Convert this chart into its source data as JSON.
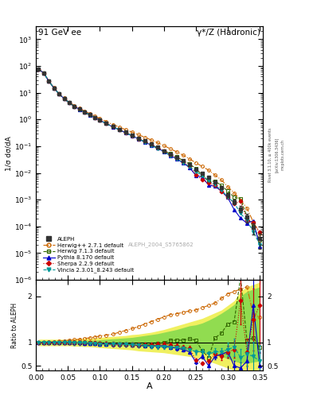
{
  "title_left": "91 GeV ee",
  "title_right": "γ*/Z (Hadronic)",
  "xlabel": "A",
  "ylabel_main": "1/σ dσ/dA",
  "ylabel_ratio": "Ratio to ALEPH",
  "watermark": "ALEPH_2004_S5765862",
  "rivet_label": "Rivet 3.1.10, ≥ 400k events",
  "arxiv_label": "[arXiv:1306.3436]",
  "mcplots_label": "mcplots.cern.ch",
  "xlim": [
    0.0,
    0.355
  ],
  "ylim_main": [
    1e-06,
    3000.0
  ],
  "ylim_ratio": [
    0.4,
    2.35
  ],
  "color_aleph": "#333333",
  "color_herwig": "#cc6600",
  "color_herwig7": "#336600",
  "color_pythia": "#0000cc",
  "color_sherpa": "#cc0000",
  "color_vincia": "#009999",
  "aleph_x": [
    0.004,
    0.012,
    0.02,
    0.028,
    0.036,
    0.044,
    0.052,
    0.06,
    0.068,
    0.076,
    0.084,
    0.092,
    0.1,
    0.11,
    0.12,
    0.13,
    0.14,
    0.15,
    0.16,
    0.17,
    0.18,
    0.19,
    0.2,
    0.21,
    0.22,
    0.23,
    0.24,
    0.25,
    0.26,
    0.27,
    0.28,
    0.29,
    0.3,
    0.31,
    0.32,
    0.33,
    0.34,
    0.35
  ],
  "aleph_y": [
    75.0,
    55.0,
    27.0,
    15.0,
    9.0,
    6.0,
    4.2,
    3.1,
    2.4,
    1.9,
    1.5,
    1.2,
    0.95,
    0.72,
    0.55,
    0.43,
    0.33,
    0.26,
    0.2,
    0.155,
    0.118,
    0.09,
    0.068,
    0.05,
    0.038,
    0.028,
    0.02,
    0.014,
    0.01,
    0.007,
    0.0045,
    0.0028,
    0.0015,
    0.00085,
    0.00045,
    0.00022,
    9e-05,
    3.5e-05
  ],
  "aleph_yerr": [
    3.0,
    2.0,
    1.0,
    0.6,
    0.35,
    0.25,
    0.18,
    0.13,
    0.1,
    0.08,
    0.06,
    0.05,
    0.04,
    0.03,
    0.025,
    0.019,
    0.015,
    0.012,
    0.009,
    0.007,
    0.006,
    0.0045,
    0.0034,
    0.0026,
    0.002,
    0.0016,
    0.0012,
    0.0009,
    0.0007,
    0.0005,
    0.0004,
    0.0003,
    0.00025,
    0.00018,
    0.00012,
    8e-05,
    4e-05,
    2e-05
  ],
  "herwig_ratio": [
    1.0,
    1.0,
    1.01,
    1.02,
    1.03,
    1.04,
    1.05,
    1.06,
    1.07,
    1.09,
    1.1,
    1.12,
    1.14,
    1.16,
    1.18,
    1.22,
    1.26,
    1.3,
    1.34,
    1.4,
    1.45,
    1.5,
    1.55,
    1.6,
    1.62,
    1.65,
    1.68,
    1.7,
    1.75,
    1.8,
    1.85,
    1.95,
    2.05,
    2.1,
    2.15,
    2.2,
    1.6,
    1.55
  ],
  "herwig7_ratio": [
    1.0,
    1.0,
    1.0,
    1.0,
    1.0,
    1.0,
    1.0,
    0.99,
    0.99,
    0.99,
    0.99,
    0.98,
    0.98,
    0.97,
    0.97,
    0.97,
    0.97,
    0.97,
    0.95,
    0.95,
    0.95,
    0.98,
    1.0,
    1.05,
    1.05,
    1.05,
    1.08,
    1.05,
    0.82,
    0.68,
    1.1,
    1.2,
    1.4,
    1.45,
    2.4,
    1.05,
    1.1,
    0.9
  ],
  "pythia_ratio": [
    1.0,
    1.0,
    1.0,
    1.0,
    1.0,
    1.0,
    1.0,
    0.99,
    0.99,
    0.98,
    0.98,
    0.98,
    0.97,
    0.97,
    0.96,
    0.96,
    0.96,
    0.95,
    0.94,
    0.93,
    0.93,
    0.93,
    0.93,
    0.9,
    0.88,
    0.85,
    0.8,
    0.58,
    0.7,
    0.5,
    0.7,
    0.75,
    0.8,
    0.5,
    0.45,
    0.6,
    1.8,
    0.5
  ],
  "sherpa_ratio": [
    1.0,
    1.0,
    1.0,
    1.0,
    1.0,
    1.0,
    1.0,
    1.0,
    1.0,
    1.0,
    0.99,
    0.99,
    0.98,
    0.98,
    0.97,
    0.96,
    0.96,
    0.95,
    0.95,
    0.95,
    0.95,
    0.96,
    0.97,
    0.95,
    0.93,
    0.9,
    0.88,
    0.62,
    0.55,
    0.6,
    0.75,
    0.7,
    0.8,
    0.85,
    1.9,
    0.8,
    1.5,
    1.8
  ],
  "vincia_ratio": [
    1.0,
    1.0,
    1.0,
    1.0,
    1.0,
    1.0,
    1.0,
    0.99,
    0.99,
    0.99,
    0.98,
    0.98,
    0.97,
    0.97,
    0.97,
    0.96,
    0.96,
    0.95,
    0.94,
    0.93,
    0.92,
    0.91,
    0.91,
    0.9,
    0.89,
    0.87,
    0.85,
    0.8,
    0.8,
    0.75,
    0.8,
    0.8,
    0.85,
    0.9,
    0.68,
    0.75,
    0.7,
    0.6
  ],
  "band_yellow_lo": [
    0.93,
    0.93,
    0.93,
    0.93,
    0.93,
    0.93,
    0.93,
    0.92,
    0.92,
    0.91,
    0.91,
    0.9,
    0.89,
    0.88,
    0.87,
    0.86,
    0.85,
    0.84,
    0.82,
    0.81,
    0.8,
    0.79,
    0.78,
    0.76,
    0.74,
    0.72,
    0.7,
    0.67,
    0.64,
    0.6,
    0.55,
    0.5,
    0.45,
    0.4,
    0.38,
    0.38,
    0.4,
    0.42
  ],
  "band_yellow_hi": [
    1.07,
    1.07,
    1.07,
    1.07,
    1.07,
    1.07,
    1.07,
    1.08,
    1.08,
    1.09,
    1.09,
    1.1,
    1.11,
    1.12,
    1.13,
    1.14,
    1.15,
    1.17,
    1.18,
    1.2,
    1.22,
    1.25,
    1.28,
    1.32,
    1.36,
    1.4,
    1.44,
    1.48,
    1.52,
    1.58,
    1.64,
    1.7,
    1.8,
    1.9,
    2.1,
    2.2,
    2.25,
    2.3
  ],
  "band_green_lo": [
    0.96,
    0.96,
    0.96,
    0.96,
    0.96,
    0.96,
    0.96,
    0.96,
    0.96,
    0.95,
    0.95,
    0.95,
    0.95,
    0.94,
    0.94,
    0.93,
    0.93,
    0.93,
    0.92,
    0.91,
    0.91,
    0.9,
    0.89,
    0.88,
    0.87,
    0.85,
    0.83,
    0.82,
    0.8,
    0.77,
    0.74,
    0.7,
    0.65,
    0.6,
    0.56,
    0.55,
    0.58,
    0.6
  ],
  "band_green_hi": [
    1.04,
    1.04,
    1.04,
    1.04,
    1.04,
    1.04,
    1.04,
    1.04,
    1.04,
    1.05,
    1.05,
    1.05,
    1.06,
    1.07,
    1.08,
    1.09,
    1.1,
    1.11,
    1.13,
    1.15,
    1.17,
    1.19,
    1.22,
    1.25,
    1.28,
    1.32,
    1.36,
    1.38,
    1.42,
    1.48,
    1.55,
    1.63,
    1.72,
    1.82,
    2.0,
    2.1,
    2.15,
    2.2
  ]
}
